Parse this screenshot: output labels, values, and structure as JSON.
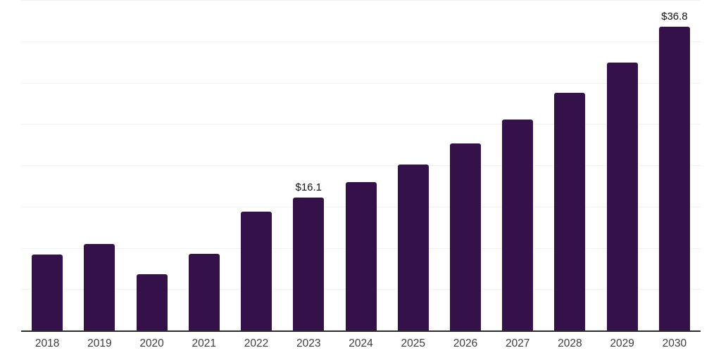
{
  "chart_data": {
    "type": "bar",
    "title": "",
    "xlabel": "",
    "ylabel": "",
    "categories": [
      "2018",
      "2019",
      "2020",
      "2021",
      "2022",
      "2023",
      "2024",
      "2025",
      "2026",
      "2027",
      "2028",
      "2029",
      "2030"
    ],
    "values": [
      9.2,
      10.5,
      6.8,
      9.3,
      14.4,
      16.1,
      18.0,
      20.1,
      22.6,
      25.5,
      28.8,
      32.4,
      36.8
    ],
    "bar_labels": [
      "",
      "",
      "",
      "",
      "",
      "$16.1",
      "",
      "",
      "",
      "",
      "",
      "",
      "$36.8"
    ],
    "ylim": [
      0,
      40
    ],
    "gridline_step": 5,
    "grid": "horizontal",
    "legend_position": "none",
    "colors": {
      "bar": "#341148",
      "gridline": "#f1f1f3",
      "axis_line": "#2d2d2d",
      "tick_label": "#3d3d3d",
      "bar_label": "#111111",
      "background": "#ffffff"
    }
  }
}
